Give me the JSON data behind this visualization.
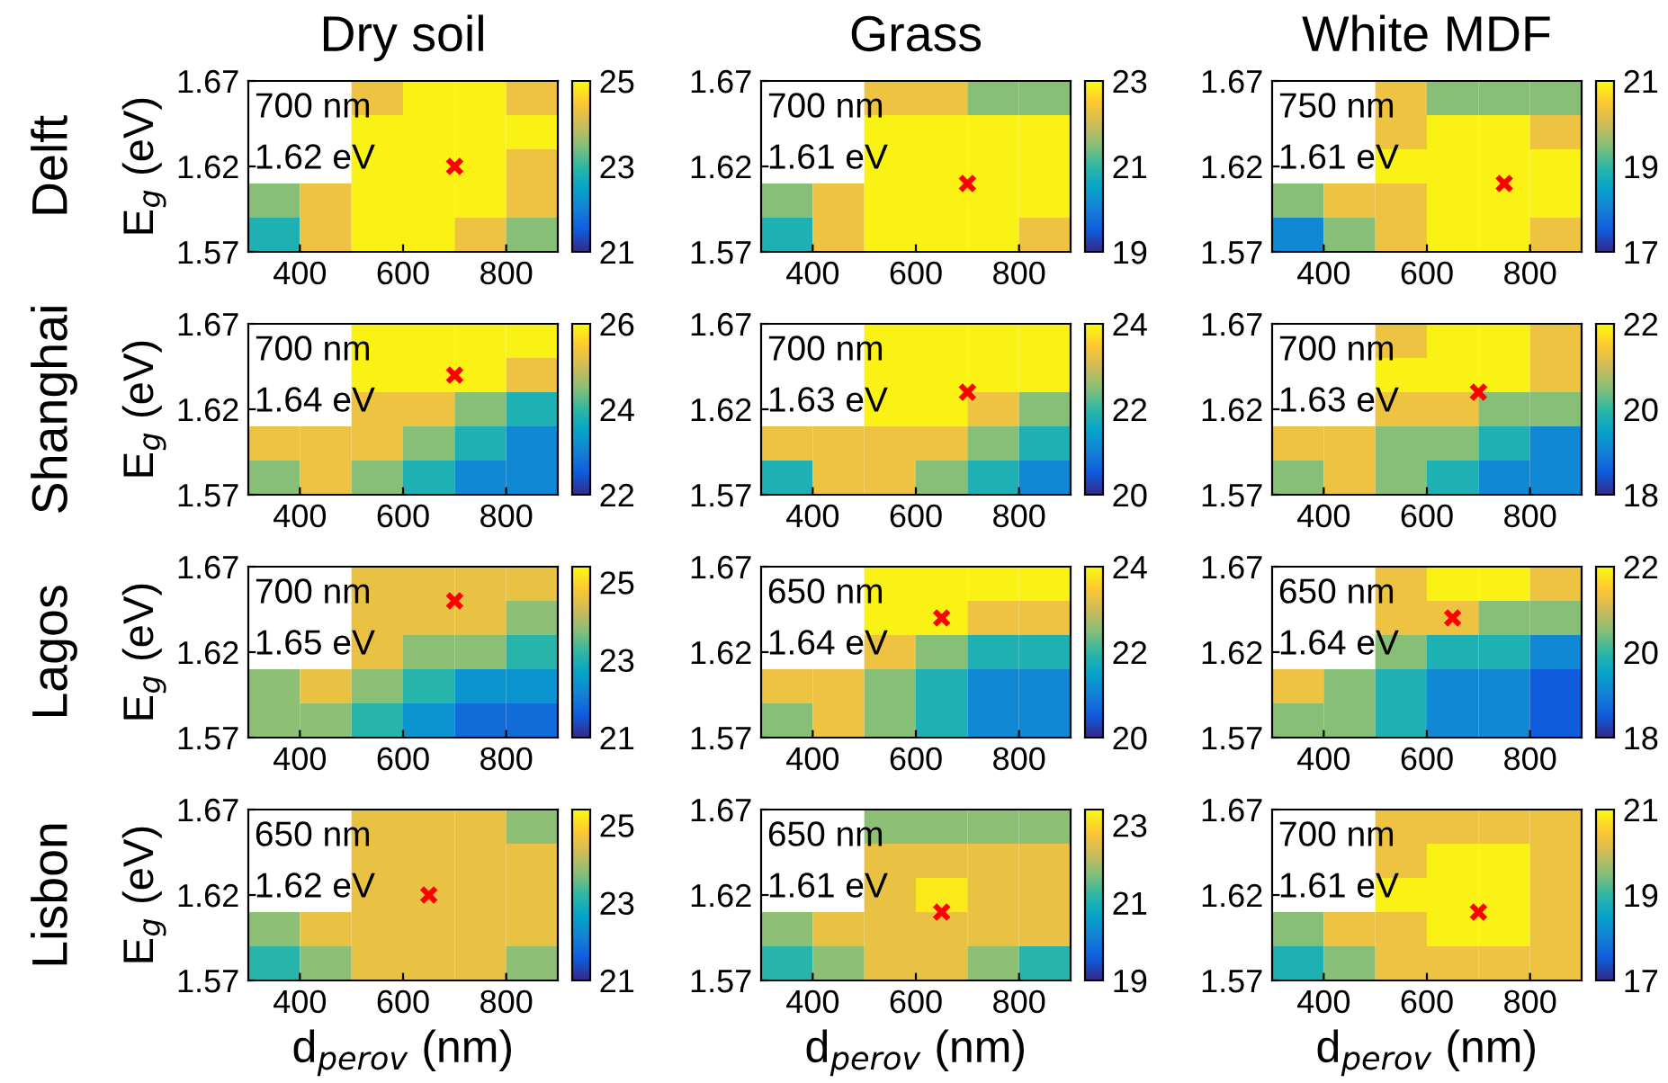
{
  "chart_data": [
    {
      "type": "heatmap",
      "title": "Dry soil",
      "subtitle": "Delft",
      "ylabel": "E$_{g}$ (eV)",
      "x": [
        350,
        450,
        550,
        650,
        750,
        850
      ],
      "y": [
        1.66,
        1.64,
        1.62,
        1.6,
        1.58
      ],
      "xlim": [
        300,
        900
      ],
      "xticks": [
        400,
        600,
        800
      ],
      "ylim": [
        1.57,
        1.67
      ],
      "yticks": [
        1.57,
        1.62,
        1.67
      ],
      "clim": [
        21,
        25
      ],
      "cticks": [
        21,
        23,
        25
      ],
      "annotations": [
        "700 nm",
        "1.62 eV"
      ],
      "cells": [
        [
          null,
          null,
          24.3,
          24.9,
          24.9,
          24.3
        ],
        [
          null,
          null,
          24.9,
          24.9,
          24.9,
          24.9
        ],
        [
          null,
          null,
          24.9,
          24.9,
          24.9,
          24.3
        ],
        [
          23.5,
          24.3,
          24.9,
          24.9,
          24.9,
          24.3
        ],
        [
          22.8,
          24.3,
          24.9,
          24.9,
          24.3,
          23.5
        ]
      ],
      "series": [
        {
          "type": "scatter",
          "x": [
            700
          ],
          "values": [
            1.62
          ],
          "color": "#ff0000",
          "marker": "cross"
        }
      ]
    },
    {
      "type": "heatmap",
      "title": "Grass",
      "x": [
        350,
        450,
        550,
        650,
        750,
        850
      ],
      "y": [
        1.66,
        1.64,
        1.62,
        1.6,
        1.58
      ],
      "xlim": [
        300,
        900
      ],
      "xticks": [
        400,
        600,
        800
      ],
      "ylim": [
        1.57,
        1.67
      ],
      "yticks": [
        1.57,
        1.62,
        1.67
      ],
      "clim": [
        19,
        23
      ],
      "cticks": [
        19,
        21,
        23
      ],
      "annotations": [
        "700 nm",
        "1.61 eV"
      ],
      "cells": [
        [
          null,
          null,
          22.3,
          22.3,
          21.5,
          21.5
        ],
        [
          null,
          null,
          22.9,
          22.9,
          22.9,
          22.9
        ],
        [
          null,
          null,
          22.9,
          22.9,
          22.9,
          22.9
        ],
        [
          21.5,
          22.3,
          22.9,
          22.9,
          22.9,
          22.9
        ],
        [
          20.8,
          22.3,
          22.9,
          22.9,
          22.9,
          22.3
        ]
      ],
      "series": [
        {
          "type": "scatter",
          "x": [
            700
          ],
          "values": [
            1.61
          ],
          "color": "#ff0000",
          "marker": "cross"
        }
      ]
    },
    {
      "type": "heatmap",
      "title": "White MDF",
      "x": [
        350,
        450,
        550,
        650,
        750,
        850
      ],
      "y": [
        1.66,
        1.64,
        1.62,
        1.6,
        1.58
      ],
      "xlim": [
        300,
        900
      ],
      "xticks": [
        400,
        600,
        800
      ],
      "ylim": [
        1.57,
        1.67
      ],
      "yticks": [
        1.57,
        1.62,
        1.67
      ],
      "clim": [
        17,
        21
      ],
      "cticks": [
        17,
        19,
        21
      ],
      "annotations": [
        "750 nm",
        "1.61 eV"
      ],
      "cells": [
        [
          null,
          null,
          20.3,
          19.5,
          19.5,
          19.5
        ],
        [
          null,
          null,
          20.3,
          20.9,
          20.9,
          20.3
        ],
        [
          null,
          null,
          20.9,
          20.9,
          20.9,
          20.9
        ],
        [
          19.5,
          20.3,
          20.3,
          20.9,
          20.9,
          20.9
        ],
        [
          18.1,
          19.5,
          20.3,
          20.9,
          20.9,
          20.3
        ]
      ],
      "series": [
        {
          "type": "scatter",
          "x": [
            750
          ],
          "values": [
            1.61
          ],
          "color": "#ff0000",
          "marker": "cross"
        }
      ]
    },
    {
      "type": "heatmap",
      "subtitle": "Shanghai",
      "ylabel": "E$_{g}$ (eV)",
      "x": [
        350,
        450,
        550,
        650,
        750,
        850
      ],
      "y": [
        1.66,
        1.64,
        1.62,
        1.6,
        1.58
      ],
      "xlim": [
        300,
        900
      ],
      "xticks": [
        400,
        600,
        800
      ],
      "ylim": [
        1.57,
        1.67
      ],
      "yticks": [
        1.57,
        1.62,
        1.67
      ],
      "clim": [
        22,
        26
      ],
      "cticks": [
        22,
        24,
        26
      ],
      "annotations": [
        "700 nm",
        "1.64 eV"
      ],
      "cells": [
        [
          null,
          null,
          25.9,
          25.9,
          25.9,
          25.9
        ],
        [
          null,
          null,
          25.9,
          25.9,
          25.9,
          25.3
        ],
        [
          null,
          null,
          25.3,
          25.3,
          24.5,
          23.8
        ],
        [
          25.3,
          25.3,
          25.3,
          24.5,
          23.8,
          23.1
        ],
        [
          24.5,
          25.3,
          24.5,
          23.8,
          23.1,
          23.1
        ]
      ],
      "series": [
        {
          "type": "scatter",
          "x": [
            700
          ],
          "values": [
            1.64
          ],
          "color": "#ff0000",
          "marker": "cross"
        }
      ]
    },
    {
      "type": "heatmap",
      "x": [
        350,
        450,
        550,
        650,
        750,
        850
      ],
      "y": [
        1.66,
        1.64,
        1.62,
        1.6,
        1.58
      ],
      "xlim": [
        300,
        900
      ],
      "xticks": [
        400,
        600,
        800
      ],
      "ylim": [
        1.57,
        1.67
      ],
      "yticks": [
        1.57,
        1.62,
        1.67
      ],
      "clim": [
        20,
        24
      ],
      "cticks": [
        20,
        22,
        24
      ],
      "annotations": [
        "700 nm",
        "1.63 eV"
      ],
      "cells": [
        [
          null,
          null,
          23.9,
          23.9,
          23.9,
          23.9
        ],
        [
          null,
          null,
          23.9,
          23.9,
          23.9,
          23.9
        ],
        [
          null,
          null,
          23.9,
          23.9,
          23.3,
          22.5
        ],
        [
          23.3,
          23.3,
          23.3,
          23.3,
          22.5,
          21.8
        ],
        [
          21.8,
          23.3,
          23.3,
          22.5,
          21.8,
          21.1
        ]
      ],
      "series": [
        {
          "type": "scatter",
          "x": [
            700
          ],
          "values": [
            1.63
          ],
          "color": "#ff0000",
          "marker": "cross"
        }
      ]
    },
    {
      "type": "heatmap",
      "x": [
        350,
        450,
        550,
        650,
        750,
        850
      ],
      "y": [
        1.66,
        1.64,
        1.62,
        1.6,
        1.58
      ],
      "xlim": [
        300,
        900
      ],
      "xticks": [
        400,
        600,
        800
      ],
      "ylim": [
        1.57,
        1.67
      ],
      "yticks": [
        1.57,
        1.62,
        1.67
      ],
      "clim": [
        18,
        22
      ],
      "cticks": [
        18,
        20,
        22
      ],
      "annotations": [
        "700 nm",
        "1.63 eV"
      ],
      "cells": [
        [
          null,
          null,
          21.3,
          21.9,
          21.9,
          21.3
        ],
        [
          null,
          null,
          21.9,
          21.9,
          21.9,
          21.3
        ],
        [
          null,
          null,
          21.3,
          21.3,
          20.5,
          20.5
        ],
        [
          21.3,
          21.3,
          20.5,
          20.5,
          19.8,
          19.1
        ],
        [
          20.5,
          21.3,
          20.5,
          19.8,
          19.1,
          19.1
        ]
      ],
      "series": [
        {
          "type": "scatter",
          "x": [
            700
          ],
          "values": [
            1.63
          ],
          "color": "#ff0000",
          "marker": "cross"
        }
      ]
    },
    {
      "type": "heatmap",
      "subtitle": "Lagos",
      "ylabel": "E$_{g}$ (eV)",
      "x": [
        350,
        450,
        550,
        650,
        750,
        850
      ],
      "y": [
        1.66,
        1.64,
        1.62,
        1.6,
        1.58
      ],
      "xlim": [
        300,
        900
      ],
      "xticks": [
        400,
        600,
        800
      ],
      "ylim": [
        1.57,
        1.67
      ],
      "yticks": [
        1.57,
        1.62,
        1.67
      ],
      "clim": [
        21,
        25.4
      ],
      "cticks": [
        21,
        23,
        25
      ],
      "annotations": [
        "700 nm",
        "1.65 eV"
      ],
      "cells": [
        [
          null,
          null,
          24.6,
          24.6,
          24.6,
          24.6
        ],
        [
          null,
          null,
          24.6,
          24.6,
          24.6,
          23.8
        ],
        [
          null,
          null,
          24.6,
          23.8,
          23.8,
          23.1
        ],
        [
          23.8,
          24.6,
          23.8,
          23.1,
          22.4,
          22.4
        ],
        [
          23.8,
          23.8,
          23.1,
          22.4,
          21.8,
          21.8
        ]
      ],
      "series": [
        {
          "type": "scatter",
          "x": [
            700
          ],
          "values": [
            1.65
          ],
          "color": "#ff0000",
          "marker": "cross"
        }
      ]
    },
    {
      "type": "heatmap",
      "x": [
        350,
        450,
        550,
        650,
        750,
        850
      ],
      "y": [
        1.66,
        1.64,
        1.62,
        1.6,
        1.58
      ],
      "xlim": [
        300,
        900
      ],
      "xticks": [
        400,
        600,
        800
      ],
      "ylim": [
        1.57,
        1.67
      ],
      "yticks": [
        1.57,
        1.62,
        1.67
      ],
      "clim": [
        20,
        24
      ],
      "cticks": [
        20,
        22,
        24
      ],
      "annotations": [
        "650 nm",
        "1.64 eV"
      ],
      "cells": [
        [
          null,
          null,
          23.9,
          23.9,
          23.9,
          23.9
        ],
        [
          null,
          null,
          23.9,
          23.9,
          23.3,
          23.3
        ],
        [
          null,
          null,
          23.3,
          22.5,
          21.8,
          21.8
        ],
        [
          23.3,
          23.3,
          22.5,
          21.8,
          21.1,
          21.1
        ],
        [
          22.5,
          23.3,
          22.5,
          21.8,
          21.1,
          21.1
        ]
      ],
      "series": [
        {
          "type": "scatter",
          "x": [
            650
          ],
          "values": [
            1.64
          ],
          "color": "#ff0000",
          "marker": "cross"
        }
      ]
    },
    {
      "type": "heatmap",
      "x": [
        350,
        450,
        550,
        650,
        750,
        850
      ],
      "y": [
        1.66,
        1.64,
        1.62,
        1.6,
        1.58
      ],
      "xlim": [
        300,
        900
      ],
      "xticks": [
        400,
        600,
        800
      ],
      "ylim": [
        1.57,
        1.67
      ],
      "yticks": [
        1.57,
        1.62,
        1.67
      ],
      "clim": [
        18,
        22
      ],
      "cticks": [
        18,
        20,
        22
      ],
      "annotations": [
        "650 nm",
        "1.64 eV"
      ],
      "cells": [
        [
          null,
          null,
          21.3,
          21.9,
          21.9,
          21.3
        ],
        [
          null,
          null,
          21.3,
          21.3,
          20.5,
          20.5
        ],
        [
          null,
          null,
          20.5,
          19.8,
          19.8,
          19.1
        ],
        [
          21.3,
          20.5,
          19.8,
          19.1,
          19.1,
          18.5
        ],
        [
          20.5,
          20.5,
          19.8,
          19.1,
          19.1,
          18.5
        ]
      ],
      "series": [
        {
          "type": "scatter",
          "x": [
            650
          ],
          "values": [
            1.64
          ],
          "color": "#ff0000",
          "marker": "cross"
        }
      ]
    },
    {
      "type": "heatmap",
      "subtitle": "Lisbon",
      "xlabel": "d$_{perov}$ (nm)",
      "ylabel": "E$_{g}$ (eV)",
      "x": [
        350,
        450,
        550,
        650,
        750,
        850
      ],
      "y": [
        1.66,
        1.64,
        1.62,
        1.6,
        1.58
      ],
      "xlim": [
        300,
        900
      ],
      "xticks": [
        400,
        600,
        800
      ],
      "ylim": [
        1.57,
        1.67
      ],
      "yticks": [
        1.57,
        1.62,
        1.67
      ],
      "clim": [
        21,
        25.4
      ],
      "cticks": [
        21,
        23,
        25
      ],
      "annotations": [
        "650 nm",
        "1.62 eV"
      ],
      "cells": [
        [
          null,
          null,
          24.6,
          24.6,
          24.6,
          23.8
        ],
        [
          null,
          null,
          24.6,
          24.6,
          24.6,
          24.6
        ],
        [
          null,
          null,
          24.6,
          24.6,
          24.6,
          24.6
        ],
        [
          23.8,
          24.6,
          24.6,
          24.6,
          24.6,
          24.6
        ],
        [
          23.1,
          23.8,
          24.6,
          24.6,
          24.6,
          23.8
        ]
      ],
      "series": [
        {
          "type": "scatter",
          "x": [
            650
          ],
          "values": [
            1.62
          ],
          "color": "#ff0000",
          "marker": "cross"
        }
      ]
    },
    {
      "type": "heatmap",
      "xlabel": "d$_{perov}$ (nm)",
      "x": [
        350,
        450,
        550,
        650,
        750,
        850
      ],
      "y": [
        1.66,
        1.64,
        1.62,
        1.6,
        1.58
      ],
      "xlim": [
        300,
        900
      ],
      "xticks": [
        400,
        600,
        800
      ],
      "ylim": [
        1.57,
        1.67
      ],
      "yticks": [
        1.57,
        1.62,
        1.67
      ],
      "clim": [
        19,
        23.4
      ],
      "cticks": [
        19,
        21,
        23
      ],
      "annotations": [
        "650 nm",
        "1.61 eV"
      ],
      "cells": [
        [
          null,
          null,
          21.8,
          21.8,
          21.8,
          21.8
        ],
        [
          null,
          null,
          22.6,
          22.6,
          22.6,
          22.6
        ],
        [
          null,
          null,
          22.6,
          23.2,
          22.6,
          22.6
        ],
        [
          21.8,
          22.6,
          22.6,
          22.6,
          22.6,
          22.6
        ],
        [
          21.1,
          21.8,
          22.6,
          22.6,
          21.8,
          21.1
        ]
      ],
      "series": [
        {
          "type": "scatter",
          "x": [
            650
          ],
          "values": [
            1.61
          ],
          "color": "#ff0000",
          "marker": "cross"
        }
      ]
    },
    {
      "type": "heatmap",
      "xlabel": "d$_{perov}$ (nm)",
      "x": [
        350,
        450,
        550,
        650,
        750,
        850
      ],
      "y": [
        1.66,
        1.64,
        1.62,
        1.6,
        1.58
      ],
      "xlim": [
        300,
        900
      ],
      "xticks": [
        400,
        600,
        800
      ],
      "ylim": [
        1.57,
        1.67
      ],
      "yticks": [
        1.57,
        1.62,
        1.67
      ],
      "clim": [
        17,
        21
      ],
      "cticks": [
        17,
        19,
        21
      ],
      "annotations": [
        "700 nm",
        "1.61 eV"
      ],
      "cells": [
        [
          null,
          null,
          20.3,
          20.3,
          20.3,
          20.3
        ],
        [
          null,
          null,
          20.3,
          20.9,
          20.9,
          20.3
        ],
        [
          null,
          null,
          20.9,
          20.9,
          20.9,
          20.3
        ],
        [
          19.5,
          20.3,
          20.3,
          20.9,
          20.9,
          20.3
        ],
        [
          18.8,
          19.5,
          20.3,
          20.3,
          20.3,
          20.3
        ]
      ],
      "series": [
        {
          "type": "scatter",
          "x": [
            700
          ],
          "values": [
            1.61
          ],
          "color": "#ff0000",
          "marker": "cross"
        }
      ]
    }
  ]
}
